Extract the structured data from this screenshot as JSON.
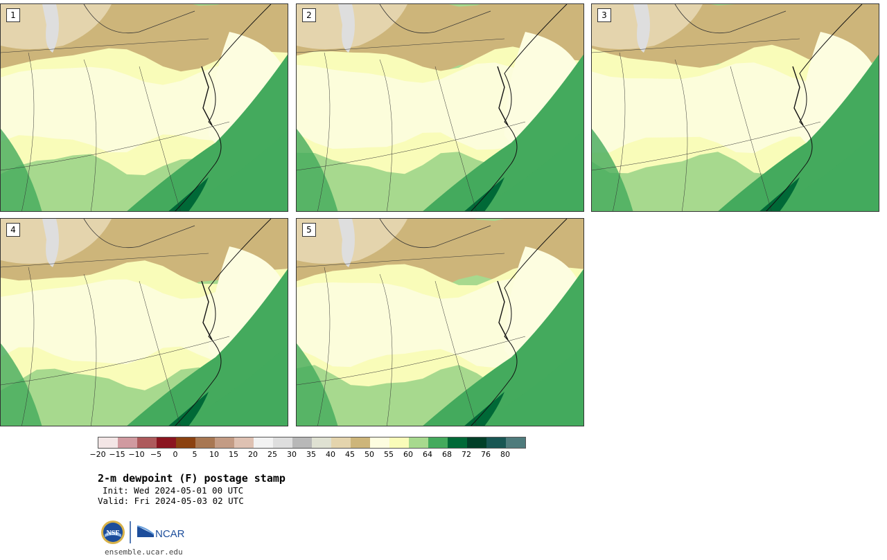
{
  "panels": [
    {
      "label": "1"
    },
    {
      "label": "2"
    },
    {
      "label": "3"
    },
    {
      "label": "4"
    },
    {
      "label": "5"
    }
  ],
  "colorbar": {
    "colors": [
      "#f3e6e6",
      "#d09aa0",
      "#ad5a5c",
      "#8b1520",
      "#8b4211",
      "#a87752",
      "#c39b84",
      "#dec1b2",
      "#f2f2f2",
      "#dedede",
      "#b8b8b8",
      "#dfe1d2",
      "#e4d4ad",
      "#cdb57a",
      "#fdfde0",
      "#f9fcb9",
      "#a7d98e",
      "#44aa5d",
      "#006937",
      "#013f28",
      "#185653",
      "#4e7b7c"
    ],
    "tick_labels": [
      "−20",
      "−15",
      "−10",
      "−5",
      "0",
      "5",
      "10",
      "15",
      "20",
      "25",
      "30",
      "35",
      "40",
      "45",
      "50",
      "55",
      "60",
      "64",
      "68",
      "72",
      "76",
      "80"
    ]
  },
  "title": "2-m dewpoint (F) postage stamp",
  "init": "Init: Wed 2024-05-01 00 UTC",
  "valid": "Valid: Fri 2024-05-03 02 UTC",
  "logos": {
    "nsf_text": "NSF",
    "ncar_text": "NCAR"
  },
  "url": "ensemble.ucar.edu"
}
